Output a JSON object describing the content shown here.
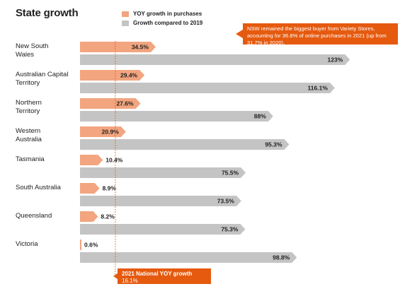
{
  "title": "State growth",
  "legend": [
    {
      "label": "YOY growth in purchases",
      "color": "#f2a57f"
    },
    {
      "label": "Growth compared to 2019",
      "color": "#c4c4c4"
    }
  ],
  "callout": "NSW remained the biggest buyer from Variety Stores, accounting for 36.8% of online purchases in 2021 (up from 31.7% in 2020).",
  "national": {
    "label": "2021 National YOY growth",
    "value_text": "16.1%",
    "value": 16.1
  },
  "colors": {
    "yoy": "#f2a57f",
    "vs2019": "#c4c4c4",
    "accent": "#e55a0f"
  },
  "chart_data": {
    "type": "bar",
    "categories": [
      [
        "New South",
        "Wales"
      ],
      [
        "Australian Capital",
        "Territory"
      ],
      [
        "Northern",
        "Territory"
      ],
      [
        "Western",
        "Australia"
      ],
      [
        "Tasmania"
      ],
      [
        "South Australia"
      ],
      [
        "Queensland"
      ],
      [
        "Victoria"
      ]
    ],
    "series": [
      {
        "name": "YOY growth in purchases",
        "values": [
          34.5,
          29.4,
          27.6,
          20.9,
          10.4,
          8.9,
          8.2,
          0.6
        ],
        "labels": [
          "34.5%",
          "29.4%",
          "27.6%",
          "20.9%",
          "10.4%",
          "8.9%",
          "8.2%",
          "0.6%"
        ]
      },
      {
        "name": "Growth compared to 2019",
        "values": [
          123,
          116.1,
          88,
          95.3,
          75.5,
          73.5,
          75.3,
          98.8
        ],
        "labels": [
          "123%",
          "116.1%",
          "88%",
          "95.3%",
          "75.5%",
          "73.5%",
          "75.3%",
          "98.8%"
        ]
      }
    ],
    "reference_line": {
      "value": 16.1,
      "label": "2021 National YOY growth"
    }
  }
}
